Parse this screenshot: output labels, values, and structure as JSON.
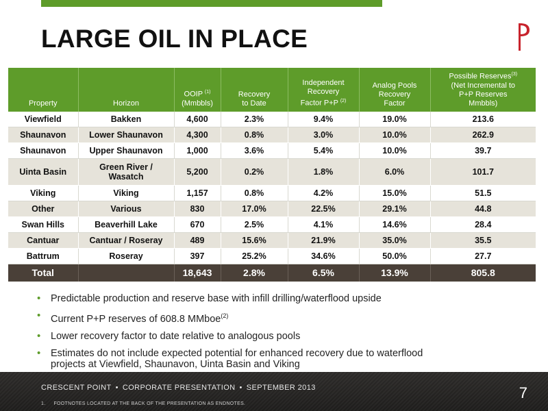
{
  "title": "LARGE OIL IN PLACE",
  "logo": {
    "icon": "crescent-point-logo-icon",
    "color": "#c8232c"
  },
  "colors": {
    "accent": "#5e9c2a",
    "total_row": "#4a4038",
    "alt_row": "#e6e3da"
  },
  "table": {
    "headers": {
      "property": "Property",
      "horizon": "Horizon",
      "ooip": {
        "text": "OOIP",
        "sup": "(1)",
        "unit": "(Mmbbls)"
      },
      "recovery": {
        "line1": "Recovery",
        "line2": "to Date"
      },
      "independent": {
        "line1": "Independent",
        "line2": "Recovery",
        "line3": "Factor P+P",
        "sup": "(2)"
      },
      "analog": {
        "line1": "Analog Pools",
        "line2": "Recovery",
        "line3": "Factor"
      },
      "possible": {
        "line1": "Possible Reserves",
        "sup": "(3)",
        "line2": "(Net Incremental to",
        "line3": "P+P Reserves",
        "line4": "Mmbbls)"
      }
    },
    "rows": [
      {
        "property": "Viewfield",
        "horizon": "Bakken",
        "ooip": "4,600",
        "recovery": "2.3%",
        "independent": "9.4%",
        "analog": "19.0%",
        "possible": "213.6"
      },
      {
        "property": "Shaunavon",
        "horizon": "Lower Shaunavon",
        "ooip": "4,300",
        "recovery": "0.8%",
        "independent": "3.0%",
        "analog": "10.0%",
        "possible": "262.9"
      },
      {
        "property": "Shaunavon",
        "horizon": "Upper Shaunavon",
        "ooip": "1,000",
        "recovery": "3.6%",
        "independent": "5.4%",
        "analog": "10.0%",
        "possible": "39.7"
      },
      {
        "property": "Uinta Basin",
        "horizon_line1": "Green River /",
        "horizon_line2": "Wasatch",
        "ooip": "5,200",
        "recovery": "0.2%",
        "independent": "1.8%",
        "analog": "6.0%",
        "possible": "101.7"
      },
      {
        "property": "Viking",
        "horizon": "Viking",
        "ooip": "1,157",
        "recovery": "0.8%",
        "independent": "4.2%",
        "analog": "15.0%",
        "possible": "51.5"
      },
      {
        "property": "Other",
        "horizon": "Various",
        "ooip": "830",
        "recovery": "17.0%",
        "independent": "22.5%",
        "analog": "29.1%",
        "possible": "44.8"
      },
      {
        "property": "Swan Hills",
        "horizon": "Beaverhill Lake",
        "ooip": "670",
        "recovery": "2.5%",
        "independent": "4.1%",
        "analog": "14.6%",
        "possible": "28.4"
      },
      {
        "property": "Cantuar",
        "horizon": "Cantuar / Roseray",
        "ooip": "489",
        "recovery": "15.6%",
        "independent": "21.9%",
        "analog": "35.0%",
        "possible": "35.5"
      },
      {
        "property": "Battrum",
        "horizon": "Roseray",
        "ooip": "397",
        "recovery": "25.2%",
        "independent": "34.6%",
        "analog": "50.0%",
        "possible": "27.7"
      }
    ],
    "total": {
      "label": "Total",
      "ooip": "18,643",
      "recovery": "2.8%",
      "independent": "6.5%",
      "analog": "13.9%",
      "possible": "805.8"
    }
  },
  "bullets": {
    "b1": "Predictable production and reserve base with infill drilling/waterflood upside",
    "b2": "Current P+P reserves of 608.8 MMboe",
    "b2_sup": "(2)",
    "b3": "Lower recovery factor to date relative to analogous pools",
    "b4_line1": "Estimates do not include expected potential for enhanced recovery due to waterflood",
    "b4_line2": "projects at Viewfield, Shaunavon, Uinta Basin and Viking"
  },
  "footer": {
    "company": "CRESCENT POINT",
    "section": "CORPORATE PRESENTATION",
    "date": "SEPTEMBER 2013",
    "separator": "•",
    "footnote_num": "1.",
    "footnote": "FOOTNOTES LOCATED AT THE BACK OF THE PRESENTATION AS ENDNOTES.",
    "page": "7"
  }
}
